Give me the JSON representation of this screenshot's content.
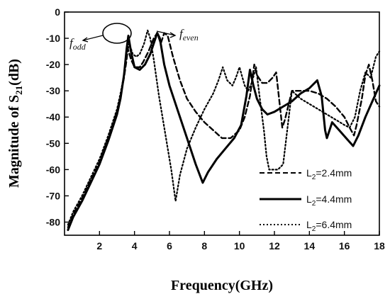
{
  "chart_data": {
    "type": "line",
    "xlabel": "Frequency(GHz)",
    "ylabel": {
      "prefix": "Magnitude of S",
      "sub": "21",
      "suffix": "(dB)"
    },
    "xlim": [
      0,
      18
    ],
    "ylim": [
      -85,
      0
    ],
    "xticks": [
      2,
      4,
      6,
      8,
      10,
      12,
      14,
      16,
      18
    ],
    "yticks": [
      0,
      -10,
      -20,
      -30,
      -40,
      -50,
      -60,
      -70,
      -80
    ],
    "grid": false,
    "legend_position": "bottom-right",
    "annotations": [
      {
        "main": "f",
        "sub": "odd"
      },
      {
        "main": "f",
        "sub": "even"
      }
    ],
    "series": [
      {
        "name": {
          "main": "L",
          "sub": "2",
          "rest": "=2.4mm"
        },
        "style": "dashed",
        "points": [
          [
            0.2,
            -82
          ],
          [
            0.5,
            -77
          ],
          [
            1.0,
            -71
          ],
          [
            1.5,
            -64
          ],
          [
            2.0,
            -57
          ],
          [
            2.5,
            -48
          ],
          [
            3.0,
            -38
          ],
          [
            3.2,
            -32
          ],
          [
            3.4,
            -25
          ],
          [
            3.55,
            -18
          ],
          [
            3.62,
            -14
          ],
          [
            3.8,
            -18
          ],
          [
            4.0,
            -21
          ],
          [
            4.3,
            -21
          ],
          [
            4.5,
            -19
          ],
          [
            4.8,
            -15
          ],
          [
            5.1,
            -10
          ],
          [
            5.3,
            -8
          ],
          [
            5.5,
            -12
          ],
          [
            5.7,
            -8
          ],
          [
            5.9,
            -9
          ],
          [
            6.2,
            -17
          ],
          [
            6.6,
            -26
          ],
          [
            7.0,
            -33
          ],
          [
            7.5,
            -38
          ],
          [
            8.0,
            -42
          ],
          [
            8.5,
            -45
          ],
          [
            9.0,
            -48
          ],
          [
            9.5,
            -48
          ],
          [
            10.0,
            -45
          ],
          [
            10.3,
            -40
          ],
          [
            10.6,
            -32
          ],
          [
            10.85,
            -20
          ],
          [
            11.0,
            -24
          ],
          [
            11.3,
            -27
          ],
          [
            11.6,
            -27
          ],
          [
            11.9,
            -25
          ],
          [
            12.1,
            -23
          ],
          [
            12.3,
            -35
          ],
          [
            12.45,
            -44
          ],
          [
            12.6,
            -41
          ],
          [
            13.0,
            -30
          ],
          [
            13.5,
            -30
          ],
          [
            14.0,
            -30
          ],
          [
            14.5,
            -31
          ],
          [
            15.0,
            -33
          ],
          [
            15.5,
            -36
          ],
          [
            16.0,
            -40
          ],
          [
            16.3,
            -44
          ],
          [
            16.55,
            -47
          ],
          [
            16.7,
            -43
          ],
          [
            17.0,
            -33
          ],
          [
            17.2,
            -24
          ],
          [
            17.4,
            -20
          ],
          [
            17.6,
            -26
          ],
          [
            17.8,
            -34
          ],
          [
            18.0,
            -36
          ]
        ]
      },
      {
        "name": {
          "main": "L",
          "sub": "2",
          "rest": "=4.4mm"
        },
        "style": "solid",
        "points": [
          [
            0.2,
            -83
          ],
          [
            0.5,
            -78
          ],
          [
            1.0,
            -72
          ],
          [
            1.5,
            -65
          ],
          [
            2.0,
            -58
          ],
          [
            2.5,
            -49
          ],
          [
            3.0,
            -39
          ],
          [
            3.2,
            -33
          ],
          [
            3.4,
            -24
          ],
          [
            3.55,
            -14
          ],
          [
            3.65,
            -9
          ],
          [
            3.8,
            -15
          ],
          [
            4.0,
            -21
          ],
          [
            4.3,
            -22
          ],
          [
            4.6,
            -20
          ],
          [
            4.9,
            -16
          ],
          [
            5.15,
            -11
          ],
          [
            5.3,
            -8
          ],
          [
            5.45,
            -10
          ],
          [
            5.7,
            -20
          ],
          [
            6.0,
            -28
          ],
          [
            6.5,
            -38
          ],
          [
            7.0,
            -48
          ],
          [
            7.5,
            -58
          ],
          [
            7.9,
            -65
          ],
          [
            8.2,
            -61
          ],
          [
            8.7,
            -56
          ],
          [
            9.2,
            -52
          ],
          [
            9.7,
            -48
          ],
          [
            10.1,
            -43
          ],
          [
            10.4,
            -32
          ],
          [
            10.6,
            -22
          ],
          [
            10.8,
            -28
          ],
          [
            11.0,
            -33
          ],
          [
            11.3,
            -37
          ],
          [
            11.6,
            -39
          ],
          [
            12.0,
            -38
          ],
          [
            12.5,
            -36
          ],
          [
            13.0,
            -34
          ],
          [
            13.5,
            -31
          ],
          [
            14.0,
            -29
          ],
          [
            14.45,
            -26
          ],
          [
            14.7,
            -32
          ],
          [
            14.9,
            -45
          ],
          [
            15.0,
            -48
          ],
          [
            15.1,
            -46
          ],
          [
            15.3,
            -42
          ],
          [
            15.7,
            -45
          ],
          [
            16.1,
            -48
          ],
          [
            16.5,
            -51
          ],
          [
            16.8,
            -47
          ],
          [
            17.2,
            -40
          ],
          [
            17.6,
            -34
          ],
          [
            18.0,
            -28
          ]
        ]
      },
      {
        "name": {
          "main": "L",
          "sub": "2",
          "rest": "=6.4mm"
        },
        "style": "dotted",
        "points": [
          [
            0.2,
            -81
          ],
          [
            0.5,
            -76
          ],
          [
            1.0,
            -70
          ],
          [
            1.5,
            -63
          ],
          [
            2.0,
            -56
          ],
          [
            2.5,
            -47
          ],
          [
            3.0,
            -37
          ],
          [
            3.2,
            -31
          ],
          [
            3.4,
            -24
          ],
          [
            3.55,
            -16
          ],
          [
            3.7,
            -12
          ],
          [
            3.9,
            -16
          ],
          [
            4.1,
            -17
          ],
          [
            4.3,
            -16
          ],
          [
            4.55,
            -12
          ],
          [
            4.75,
            -7
          ],
          [
            4.9,
            -10
          ],
          [
            5.1,
            -18
          ],
          [
            5.4,
            -32
          ],
          [
            5.8,
            -48
          ],
          [
            6.1,
            -60
          ],
          [
            6.35,
            -72
          ],
          [
            6.6,
            -62
          ],
          [
            7.0,
            -52
          ],
          [
            7.5,
            -44
          ],
          [
            8.0,
            -37
          ],
          [
            8.5,
            -31
          ],
          [
            8.8,
            -26
          ],
          [
            9.05,
            -21
          ],
          [
            9.3,
            -26
          ],
          [
            9.6,
            -28
          ],
          [
            9.8,
            -25
          ],
          [
            10.0,
            -21
          ],
          [
            10.3,
            -28
          ],
          [
            10.5,
            -30
          ],
          [
            10.7,
            -27
          ],
          [
            10.95,
            -21
          ],
          [
            11.15,
            -32
          ],
          [
            11.4,
            -45
          ],
          [
            11.55,
            -55
          ],
          [
            11.7,
            -60
          ],
          [
            11.9,
            -60
          ],
          [
            12.2,
            -60
          ],
          [
            12.5,
            -58
          ],
          [
            13.0,
            -30
          ],
          [
            13.5,
            -33
          ],
          [
            14.0,
            -35
          ],
          [
            14.5,
            -37
          ],
          [
            15.0,
            -39
          ],
          [
            15.5,
            -41
          ],
          [
            16.0,
            -43
          ],
          [
            16.3,
            -44
          ],
          [
            16.6,
            -40
          ],
          [
            16.9,
            -30
          ],
          [
            17.2,
            -23
          ],
          [
            17.5,
            -25
          ],
          [
            17.8,
            -17
          ],
          [
            18.0,
            -15
          ]
        ]
      }
    ]
  }
}
